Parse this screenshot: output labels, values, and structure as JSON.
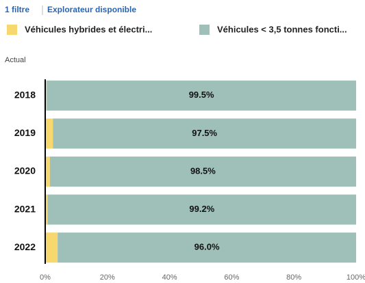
{
  "header": {
    "filters": "1 filtre",
    "explorer": "Explorateur disponible"
  },
  "chart_data": {
    "type": "stacked-barh",
    "axis_label": "Actual",
    "categories": [
      "2018",
      "2019",
      "2020",
      "2021",
      "2022"
    ],
    "series": [
      {
        "name": "Véhicules hybrides et électri...",
        "color": "#f6d86e",
        "values": [
          0.5,
          2.5,
          1.5,
          0.8,
          4.0
        ]
      },
      {
        "name": "Véhicules < 3,5 tonnes foncti...",
        "color": "#9fc0b9",
        "values": [
          99.5,
          97.5,
          98.5,
          99.2,
          96.0
        ],
        "value_labels": [
          "99.5%",
          "97.5%",
          "98.5%",
          "99.2%",
          "96.0%"
        ]
      }
    ],
    "xlim": [
      0,
      100
    ],
    "xticks": [
      {
        "value": 0,
        "label": "0%"
      },
      {
        "value": 20,
        "label": "20%"
      },
      {
        "value": 40,
        "label": "40%"
      },
      {
        "value": 60,
        "label": "60%"
      },
      {
        "value": 80,
        "label": "80%"
      },
      {
        "value": 100,
        "label": "100%"
      }
    ]
  }
}
